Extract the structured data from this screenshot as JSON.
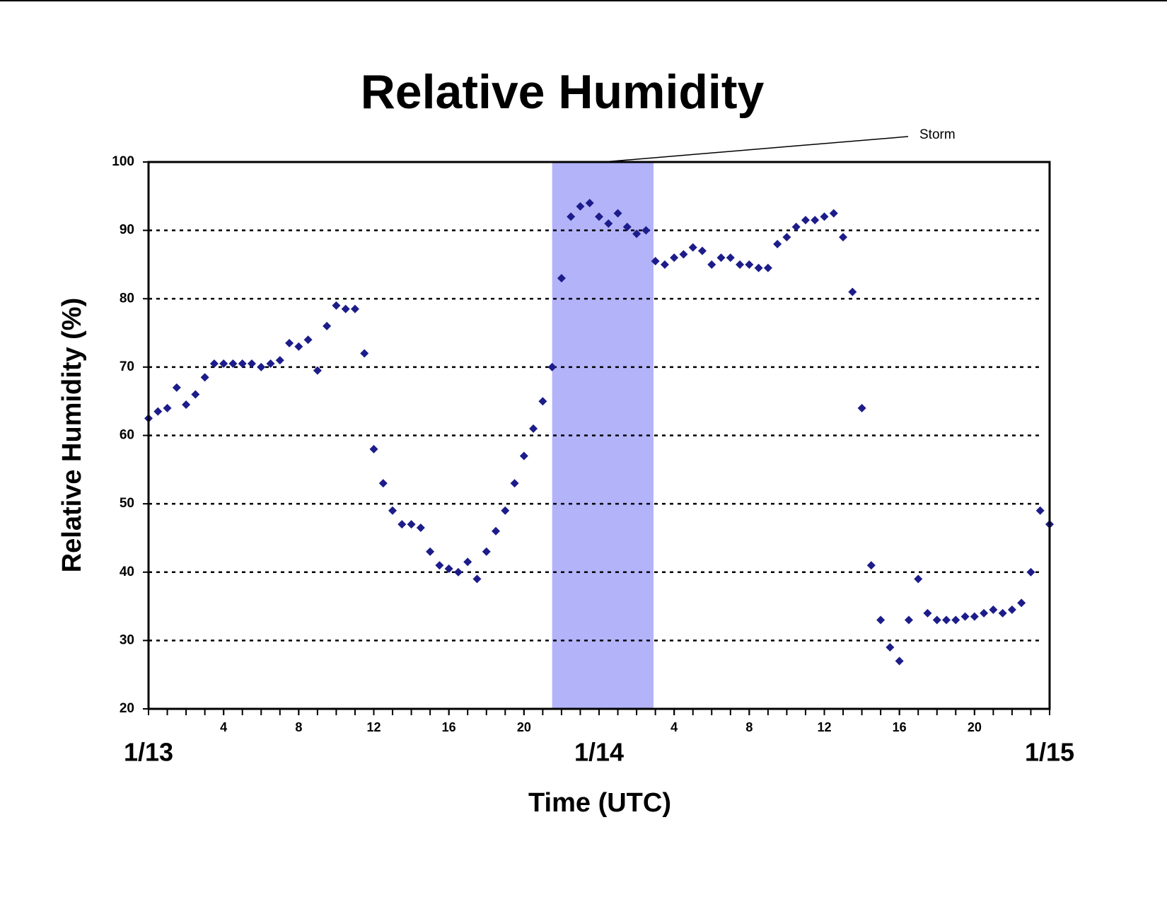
{
  "chart_data": {
    "type": "scatter",
    "title": "Relative Humidity",
    "xlabel": "Time (UTC)",
    "ylabel": "Relative Humidity (%)",
    "x": [
      0,
      0.5,
      1,
      1.5,
      2,
      2.5,
      3,
      3.5,
      4,
      4.5,
      5,
      5.5,
      6,
      6.5,
      7,
      7.5,
      8,
      8.5,
      9,
      9.5,
      10,
      10.5,
      11,
      11.5,
      12,
      12.5,
      13,
      13.5,
      14,
      14.5,
      15,
      15.5,
      16,
      16.5,
      17,
      17.5,
      18,
      18.5,
      19,
      19.5,
      20,
      20.5,
      21,
      21.5,
      22,
      22.5,
      23,
      23.5,
      24,
      24.5,
      25,
      25.5,
      26,
      26.5,
      27,
      27.5,
      28,
      28.5,
      29,
      29.5,
      30,
      30.5,
      31,
      31.5,
      32,
      32.5,
      33,
      33.5,
      34,
      34.5,
      35,
      35.5,
      36,
      36.5,
      37,
      37.5,
      38,
      38.5,
      39,
      39.5,
      40,
      40.5,
      41,
      41.5,
      42,
      42.5,
      43,
      43.5,
      44,
      44.5,
      45,
      45.5,
      46,
      46.5,
      47,
      47.5,
      48
    ],
    "series": [
      {
        "color": "#1c1c8a",
        "marker": "diamond",
        "values": [
          62.5,
          63.5,
          64,
          67,
          64.5,
          66,
          68.5,
          70.5,
          70.5,
          70.5,
          70.5,
          70.5,
          70,
          70.5,
          71,
          73.5,
          73,
          74,
          69.5,
          76,
          79,
          78.5,
          78.5,
          72,
          58,
          53,
          49,
          47,
          47,
          46.5,
          43,
          41,
          40.5,
          40,
          41.5,
          39,
          43,
          46,
          49,
          53,
          57,
          61,
          65,
          70,
          83,
          92,
          93.5,
          94,
          92,
          91,
          92.5,
          90.5,
          89.5,
          90,
          85.5,
          85,
          86,
          86.5,
          87.5,
          87,
          85,
          86,
          86,
          85,
          85,
          84.5,
          84.5,
          88,
          89,
          90.5,
          91.5,
          91.5,
          92,
          92.5,
          89,
          81,
          64,
          41,
          33,
          29,
          27,
          33,
          39,
          34,
          33,
          33,
          33,
          33.5,
          33.5,
          34,
          34.5,
          34,
          34.5,
          35.5,
          40,
          49,
          47
        ]
      }
    ],
    "xlim": [
      0,
      48
    ],
    "ylim": [
      20,
      100
    ],
    "yticks": [
      20,
      30,
      40,
      50,
      60,
      70,
      80,
      90,
      100
    ],
    "xticks": [
      4,
      8,
      12,
      16,
      20,
      {
        "value": 28,
        "label": "4"
      },
      {
        "value": 32,
        "label": "8"
      },
      {
        "value": 36,
        "label": "12"
      },
      {
        "value": 40,
        "label": "16"
      },
      {
        "value": 44,
        "label": "20"
      }
    ],
    "xminor_step": 1,
    "date_labels": [
      {
        "value": 0,
        "label": "1/13"
      },
      {
        "value": 24,
        "label": "1/14"
      },
      {
        "value": 48,
        "label": "1/15"
      }
    ],
    "grid": "dotted",
    "shade": {
      "text": "Storm",
      "xspan": [
        21.5,
        26.9
      ],
      "color": "#b3b3fa"
    }
  }
}
